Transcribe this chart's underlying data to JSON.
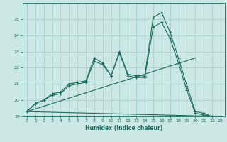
{
  "title": "",
  "xlabel": "Humidex (Indice chaleur)",
  "ylabel": "",
  "background_color": "#cce8e4",
  "grid_color": "#aacfca",
  "line_color": "#1a6b5a",
  "xlim": [
    -0.5,
    23.5
  ],
  "ylim": [
    19,
    26
  ],
  "yticks": [
    19,
    20,
    21,
    22,
    23,
    24,
    25
  ],
  "xticks": [
    0,
    1,
    2,
    3,
    4,
    5,
    6,
    7,
    8,
    9,
    10,
    11,
    12,
    13,
    14,
    15,
    16,
    17,
    18,
    19,
    20,
    21,
    22,
    23
  ],
  "lines": [
    {
      "x": [
        0,
        1,
        2,
        3,
        4,
        5,
        6,
        7,
        8,
        9,
        10,
        11,
        12,
        13,
        14,
        15,
        16,
        17,
        18,
        19,
        20,
        21,
        22,
        23
      ],
      "y": [
        19.3,
        19.8,
        20.0,
        20.4,
        20.5,
        21.0,
        21.1,
        21.2,
        22.6,
        22.3,
        21.5,
        23.0,
        21.6,
        21.5,
        21.5,
        25.1,
        25.4,
        24.2,
        22.6,
        20.9,
        19.3,
        19.2,
        19.0,
        19.0
      ]
    },
    {
      "x": [
        0,
        1,
        2,
        3,
        4,
        5,
        6,
        7,
        8,
        9,
        10,
        11,
        12,
        13,
        14,
        15,
        16,
        17,
        18,
        19,
        20,
        21,
        22,
        23
      ],
      "y": [
        19.3,
        19.8,
        20.0,
        20.3,
        20.4,
        20.9,
        21.0,
        21.1,
        22.4,
        22.2,
        21.5,
        22.9,
        21.5,
        21.4,
        21.4,
        24.5,
        24.8,
        23.8,
        22.3,
        20.6,
        19.2,
        19.1,
        19.0,
        19.0
      ]
    },
    {
      "x": [
        0,
        20
      ],
      "y": [
        19.3,
        22.6
      ]
    },
    {
      "x": [
        0,
        23
      ],
      "y": [
        19.3,
        19.0
      ]
    }
  ]
}
